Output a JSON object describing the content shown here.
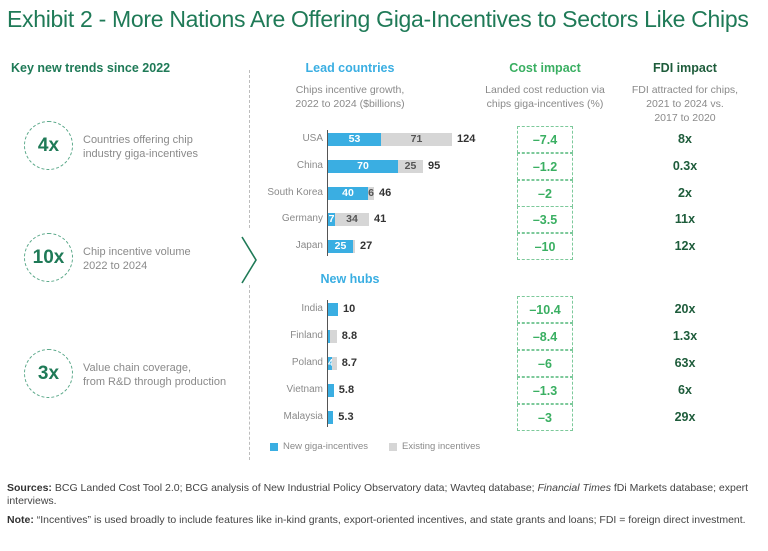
{
  "title": "Exhibit 2 - More Nations Are Offering Giga-Incentives to Sectors Like Chips",
  "trends": {
    "heading": "Key new trends since 2022",
    "items": [
      {
        "value": "4x",
        "line1": "Countries offering chip",
        "line2": "industry giga-incentives"
      },
      {
        "value": "10x",
        "line1": "Chip incentive volume",
        "line2": "2022 to 2024"
      },
      {
        "value": "3x",
        "line1": "Value chain coverage,",
        "line2": "from R&D through production"
      }
    ]
  },
  "columns": {
    "lead": {
      "heading": "Lead countries",
      "sub1": "Chips incentive growth,",
      "sub2": "2022 to 2024 ($billions)"
    },
    "hubs": {
      "heading": "New hubs"
    },
    "cost": {
      "heading": "Cost impact",
      "sub1": "Landed cost reduction via",
      "sub2": "chips giga-incentives (%)"
    },
    "fdi": {
      "heading": "FDI impact",
      "sub1": "FDI attracted for chips,",
      "sub2": "2021 to 2024 vs.",
      "sub3": "2017 to 2020"
    }
  },
  "colors": {
    "new": "#3aaee2",
    "existing": "#d6d6d6",
    "brand_green": "#1f7a57",
    "cost_green": "#3aaf62"
  },
  "chart_data": {
    "type": "bar",
    "orientation": "horizontal-stacked",
    "title": "Chips incentive growth, 2022 to 2024 ($billions)",
    "legend": [
      "New giga-incentives",
      "Existing incentives"
    ],
    "legend_position": "bottom",
    "groups": [
      {
        "name": "Lead countries",
        "categories": [
          "USA",
          "China",
          "South Korea",
          "Germany",
          "Japan"
        ],
        "series": [
          {
            "name": "New giga-incentives",
            "values": [
              53,
              70,
              40,
              7,
              25
            ],
            "labels": [
              "53",
              "70",
              "40",
              "7",
              "25"
            ]
          },
          {
            "name": "Existing incentives",
            "values": [
              71,
              25,
              6,
              34,
              2
            ],
            "labels": [
              "71",
              "25",
              "6",
              "34",
              ""
            ]
          }
        ],
        "totals": [
          "124",
          "95",
          "46",
          "41",
          "27"
        ],
        "cost_impact": [
          "–7.4",
          "–1.2",
          "–2",
          "–3.5",
          "–10"
        ],
        "fdi_impact": [
          "8x",
          "0.3x",
          "2x",
          "11x",
          "12x"
        ]
      },
      {
        "name": "New hubs",
        "categories": [
          "India",
          "Finland",
          "Poland",
          "Vietnam",
          "Malaysia"
        ],
        "series": [
          {
            "name": "New giga-incentives",
            "values": [
              10,
              1.8,
              4,
              5.8,
              5.3
            ],
            "labels": [
              "",
              "",
              "4",
              "",
              ""
            ]
          },
          {
            "name": "Existing incentives",
            "values": [
              0,
              7.0,
              4.7,
              0,
              0
            ],
            "labels": [
              "",
              "",
              "",
              "",
              ""
            ]
          }
        ],
        "totals": [
          "10",
          "8.8",
          "8.7",
          "5.8",
          "5.3"
        ],
        "cost_impact": [
          "–10.4",
          "–8.4",
          "–6",
          "–1.3",
          "–3"
        ],
        "fdi_impact": [
          "20x",
          "1.3x",
          "63x",
          "6x",
          "29x"
        ]
      }
    ]
  },
  "footnotes": {
    "sources_label": "Sources:",
    "sources_text_a": " BCG Landed Cost Tool 2.0; BCG analysis of New Industrial Policy Observatory data; Wavteq database; ",
    "sources_italic": "Financial Times",
    "sources_text_b": " fDi Markets database; expert interviews.",
    "note_label": "Note:",
    "note_text": " “Incentives” is used broadly to include features like in-kind grants, export-oriented incentives, and state grants and loans; FDI = foreign direct investment."
  }
}
